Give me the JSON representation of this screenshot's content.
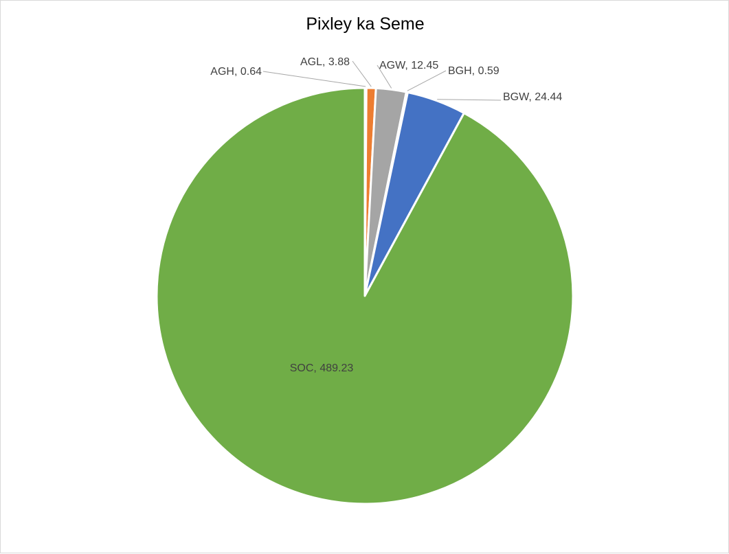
{
  "chart_data": {
    "type": "pie",
    "title": "Pixley ka Seme",
    "slices": [
      {
        "name": "AGH",
        "value": 0.64,
        "label": "AGH, 0.64",
        "color": "#5b9bd5"
      },
      {
        "name": "AGL",
        "value": 3.88,
        "label": "AGL, 3.88",
        "color": "#ed7d31"
      },
      {
        "name": "AGW",
        "value": 12.45,
        "label": "AGW, 12.45",
        "color": "#a5a5a5"
      },
      {
        "name": "BGH",
        "value": 0.59,
        "label": "BGH, 0.59",
        "color": "#ffc000"
      },
      {
        "name": "BGW",
        "value": 24.44,
        "label": "BGW, 24.44",
        "color": "#4472c4"
      },
      {
        "name": "SOC",
        "value": 489.23,
        "label": "SOC, 489.23",
        "color": "#70ad47"
      }
    ],
    "start_angle": "12 o'clock",
    "direction": "clockwise",
    "legend": "none"
  }
}
